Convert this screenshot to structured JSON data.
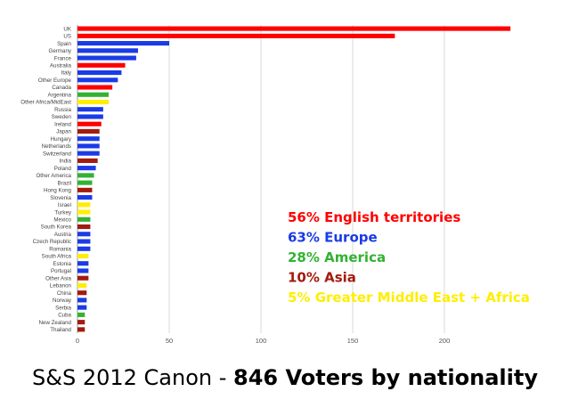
{
  "colors": {
    "English": "#ff0000",
    "Europe": "#1a3be6",
    "America": "#33b233",
    "Asia": "#a31a0f",
    "MiddleEastAfrica": "#ffee00",
    "grid": "#d9d9d9",
    "axis": "#999999"
  },
  "chart_data": {
    "type": "bar",
    "orientation": "horizontal",
    "title": "",
    "xlabel": "",
    "ylabel": "",
    "xlim": [
      0,
      230
    ],
    "xticks": [
      0,
      50,
      100,
      150,
      200
    ],
    "grid": true,
    "categories": [
      "UK",
      "US",
      "Spain",
      "Germany",
      "France",
      "Australia",
      "Italy",
      "Other Europe",
      "Canada",
      "Argentina",
      "Other Africa/MidEast",
      "Russia",
      "Sweden",
      "Ireland",
      "Japan",
      "Hungary",
      "Netherlands",
      "Switzerland",
      "India",
      "Poland",
      "Other America",
      "Brazil",
      "Hong Kong",
      "Slovenia",
      "Israel",
      "Turkey",
      "Mexico",
      "South Korea",
      "Austria",
      "Czech Republic",
      "Romania",
      "South Africa",
      "Estonia",
      "Portugal",
      "Other Asia",
      "Lebanon",
      "China",
      "Norway",
      "Serbia",
      "Cuba",
      "New Zealand",
      "Thailand"
    ],
    "values": [
      236,
      173,
      50,
      33,
      32,
      26,
      24,
      22,
      19,
      17,
      17,
      14,
      14,
      13,
      12,
      12,
      12,
      12,
      11,
      10,
      9,
      8,
      8,
      8,
      7,
      7,
      7,
      7,
      7,
      7,
      7,
      6,
      6,
      6,
      6,
      5,
      5,
      5,
      5,
      4,
      4,
      4
    ],
    "groups": [
      "English",
      "English",
      "Europe",
      "Europe",
      "Europe",
      "English",
      "Europe",
      "Europe",
      "English",
      "America",
      "MiddleEastAfrica",
      "Europe",
      "Europe",
      "English",
      "Asia",
      "Europe",
      "Europe",
      "Europe",
      "Asia",
      "Europe",
      "America",
      "America",
      "Asia",
      "Europe",
      "MiddleEastAfrica",
      "MiddleEastAfrica",
      "America",
      "Asia",
      "Europe",
      "Europe",
      "Europe",
      "MiddleEastAfrica",
      "Europe",
      "Europe",
      "Asia",
      "MiddleEastAfrica",
      "Asia",
      "Europe",
      "Europe",
      "America",
      "Asia",
      "Asia"
    ]
  },
  "legend": [
    {
      "text": "56% English territories",
      "group": "English"
    },
    {
      "text": "63% Europe",
      "group": "Europe"
    },
    {
      "text": "28% America",
      "group": "America"
    },
    {
      "text": "10% Asia",
      "group": "Asia"
    },
    {
      "text": "5% Greater Middle East + Africa",
      "group": "MiddleEastAfrica"
    }
  ],
  "caption": {
    "regular": "S&S 2012 Canon - ",
    "bold": "846 Voters by nationality"
  }
}
